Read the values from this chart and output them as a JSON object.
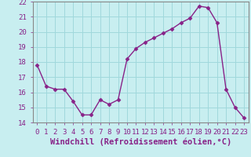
{
  "x": [
    0,
    1,
    2,
    3,
    4,
    5,
    6,
    7,
    8,
    9,
    10,
    11,
    12,
    13,
    14,
    15,
    16,
    17,
    18,
    19,
    20,
    21,
    22,
    23
  ],
  "y": [
    17.8,
    16.4,
    16.2,
    16.2,
    15.4,
    14.5,
    14.5,
    15.5,
    15.2,
    15.5,
    18.2,
    18.9,
    19.3,
    19.6,
    19.9,
    20.2,
    20.6,
    20.9,
    21.7,
    21.6,
    20.6,
    16.2,
    15.0,
    14.3
  ],
  "line_color": "#882288",
  "marker": "D",
  "marker_size": 2.5,
  "line_width": 1.0,
  "bg_color": "#c8eef0",
  "grid_color": "#a0d8dc",
  "xlabel": "Windchill (Refroidissement éolien,°C)",
  "xlabel_fontsize": 7.5,
  "xlim": [
    -0.5,
    23.5
  ],
  "ylim": [
    14,
    22
  ],
  "yticks": [
    14,
    15,
    16,
    17,
    18,
    19,
    20,
    21,
    22
  ],
  "xticks": [
    0,
    1,
    2,
    3,
    4,
    5,
    6,
    7,
    8,
    9,
    10,
    11,
    12,
    13,
    14,
    15,
    16,
    17,
    18,
    19,
    20,
    21,
    22,
    23
  ],
  "tick_fontsize": 6.5,
  "tick_color": "#882288",
  "spine_color": "#888888"
}
